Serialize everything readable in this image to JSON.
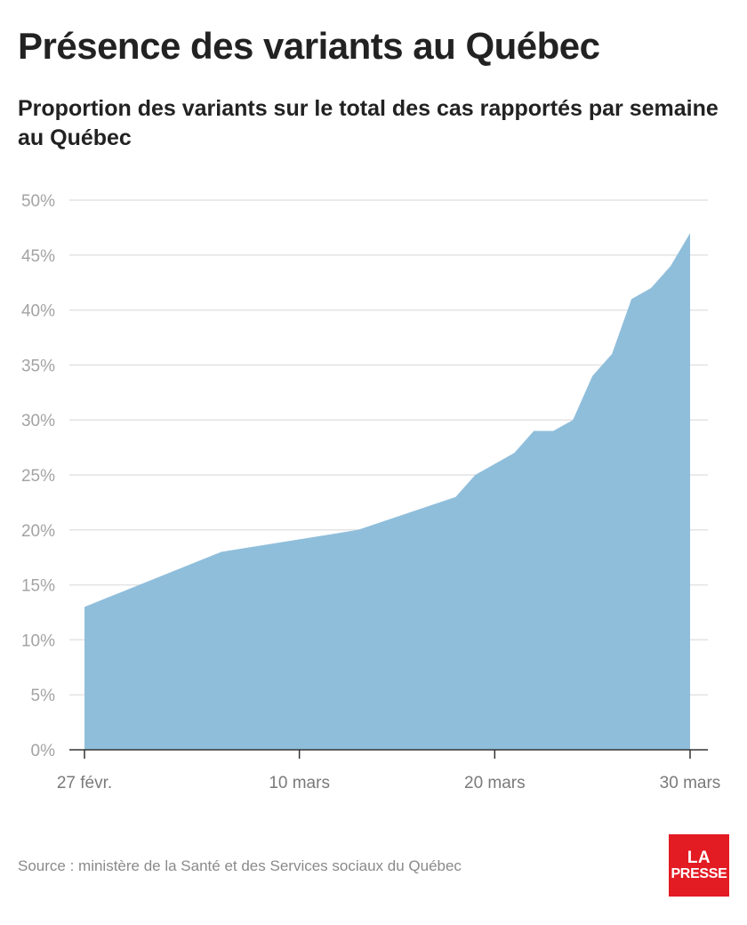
{
  "header": {
    "title": "Présence des variants au Québec",
    "subtitle": "Proportion des variants sur le total des cas rapportés par semaine au Québec"
  },
  "footer": {
    "source": "Source : ministère de la Santé et des Services sociaux du Québec",
    "logo_line1": "LA",
    "logo_line2": "PRESSE"
  },
  "colors": {
    "area": "#8fbedb",
    "grid": "#e3e3e3",
    "axis": "#333333"
  },
  "chart_data": {
    "type": "area",
    "title": "Présence des variants au Québec",
    "subtitle": "Proportion des variants sur le total des cas rapportés par semaine au Québec",
    "xlabel": "",
    "ylabel": "",
    "x_unit": "date 2021",
    "x": [
      "2021-02-27",
      "2021-03-06",
      "2021-03-13",
      "2021-03-18",
      "2021-03-19",
      "2021-03-21",
      "2021-03-22",
      "2021-03-23",
      "2021-03-24",
      "2021-03-25",
      "2021-03-26",
      "2021-03-27",
      "2021-03-28",
      "2021-03-29",
      "2021-03-30"
    ],
    "values": [
      13,
      18,
      20,
      23,
      25,
      27,
      29,
      29,
      30,
      34,
      36,
      41,
      42,
      44,
      47
    ],
    "ylim": [
      0,
      50
    ],
    "xlim": [
      "2021-02-27",
      "2021-03-30"
    ],
    "y_ticks": [
      0,
      5,
      10,
      15,
      20,
      25,
      30,
      35,
      40,
      45,
      50
    ],
    "y_tick_labels": [
      "0%",
      "5%",
      "10%",
      "15%",
      "20%",
      "25%",
      "30%",
      "35%",
      "40%",
      "45%",
      "50%"
    ],
    "x_ticks": [
      "2021-02-27",
      "2021-03-10",
      "2021-03-20",
      "2021-03-30"
    ],
    "x_tick_labels": [
      "27 févr.",
      "10 mars",
      "20 mars",
      "30 mars"
    ],
    "grid": true,
    "legend": "none"
  }
}
